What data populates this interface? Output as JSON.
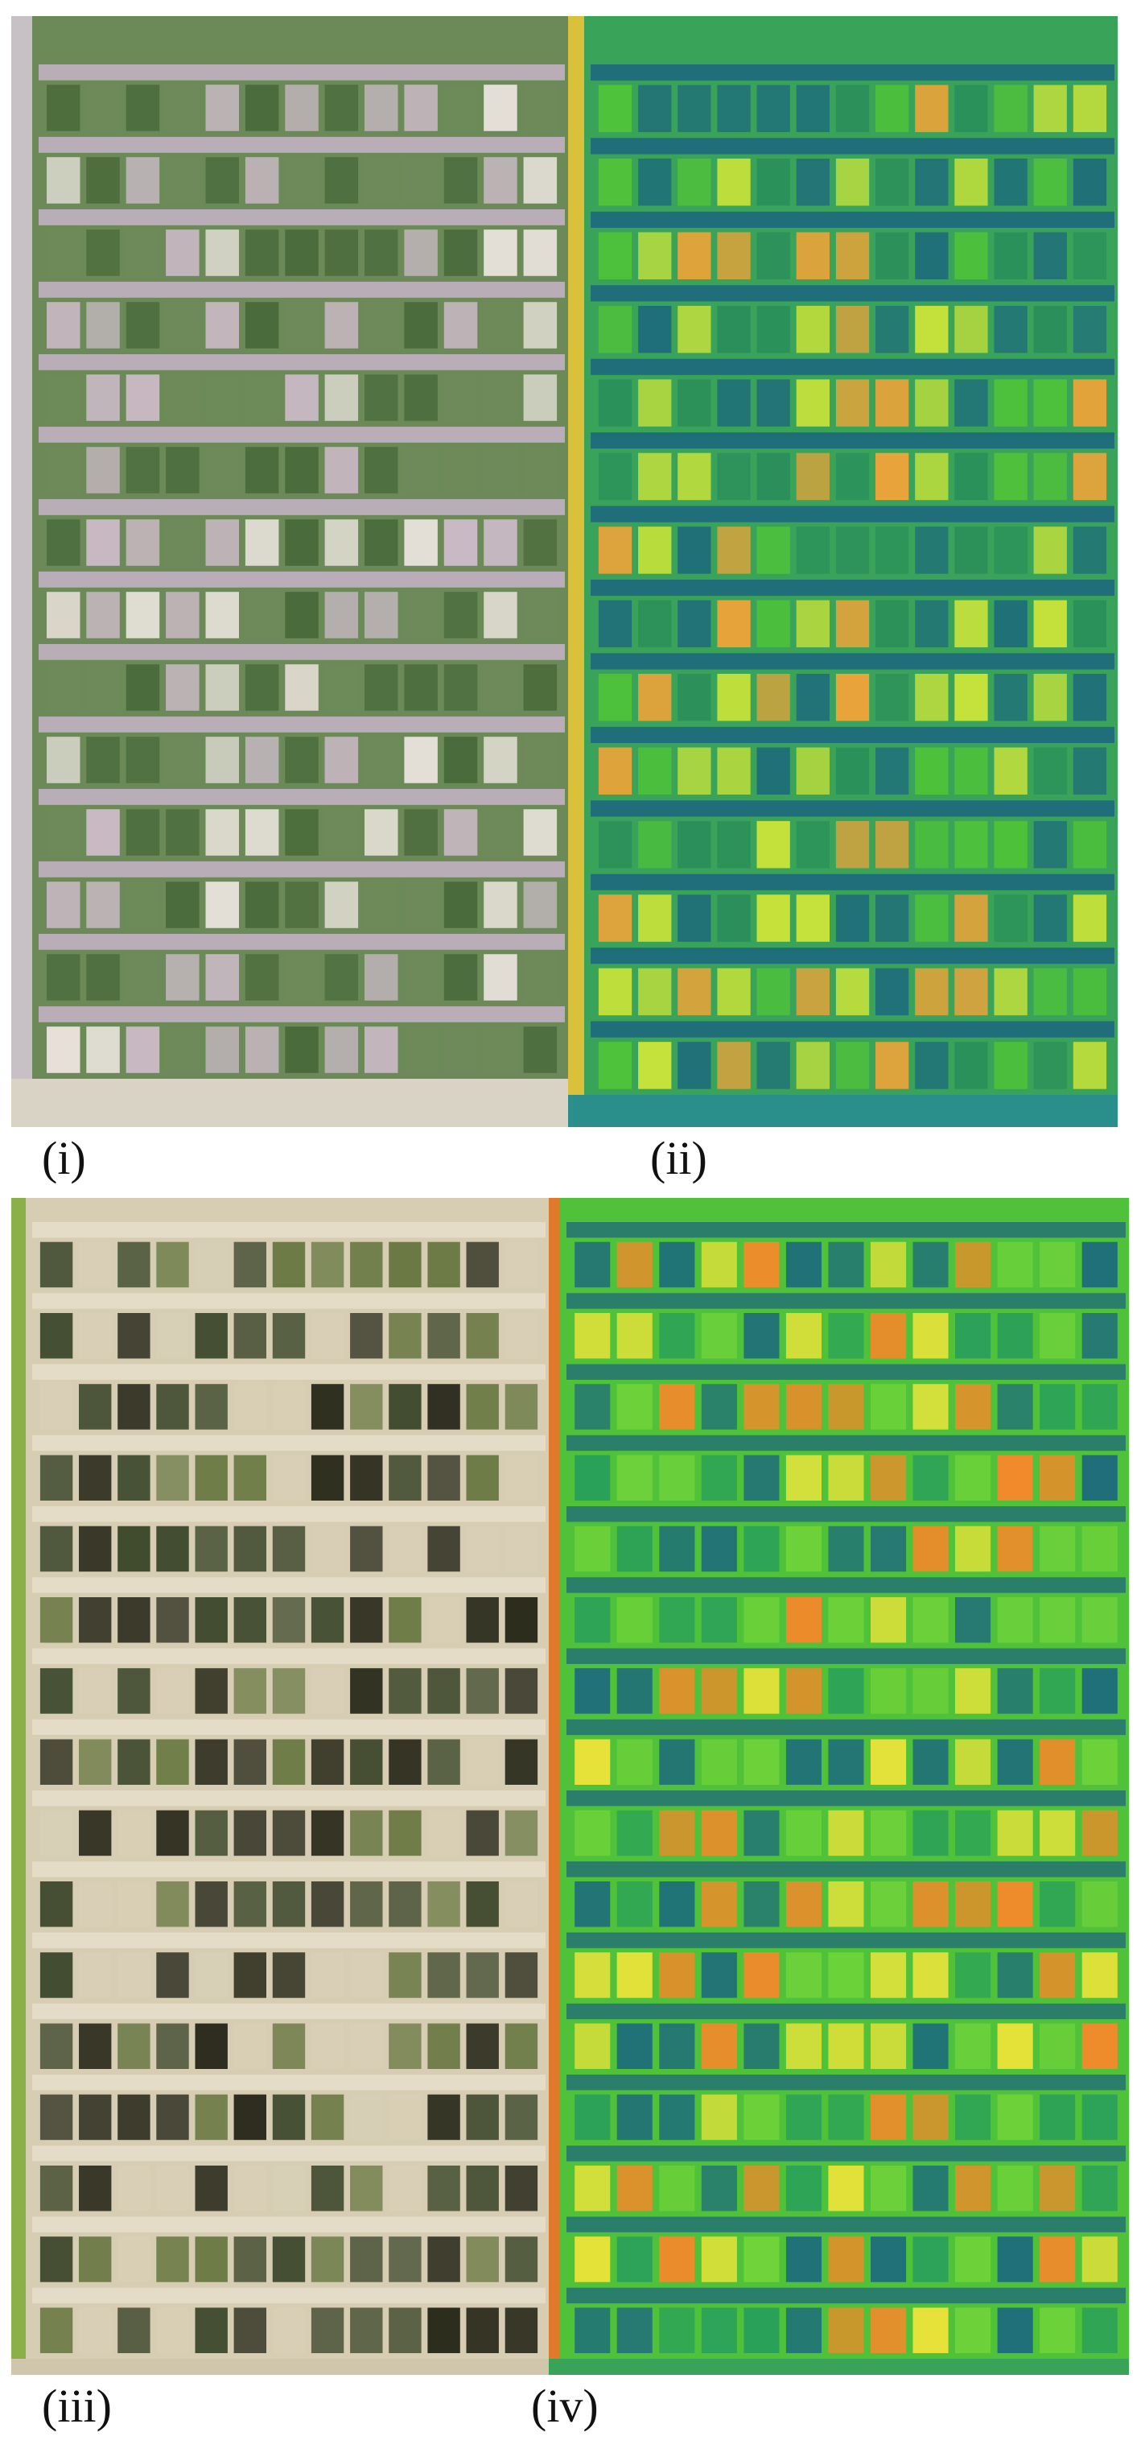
{
  "figure": {
    "panels": [
      {
        "id": "i",
        "label": "(i)",
        "kind": "rgb",
        "palette": [
          "#6f8a5a",
          "#4a6b3c",
          "#c9b9c4",
          "#e6e0d8"
        ]
      },
      {
        "id": "ii",
        "label": "(ii)",
        "kind": "index",
        "palette": [
          "#1f6e7a",
          "#2a8f5a",
          "#4fc23a",
          "#c8e23a",
          "#e8a33a"
        ]
      },
      {
        "id": "iii",
        "label": "(iii)",
        "kind": "rgb",
        "palette": [
          "#3f4a2e",
          "#6b7a45",
          "#d8cfb6",
          "#2a2a1c"
        ]
      },
      {
        "id": "iv",
        "label": "(iv)",
        "kind": "index",
        "palette": [
          "#1f6e7a",
          "#2aa05a",
          "#6fd23a",
          "#e6e23a",
          "#f08a2a"
        ]
      }
    ]
  }
}
